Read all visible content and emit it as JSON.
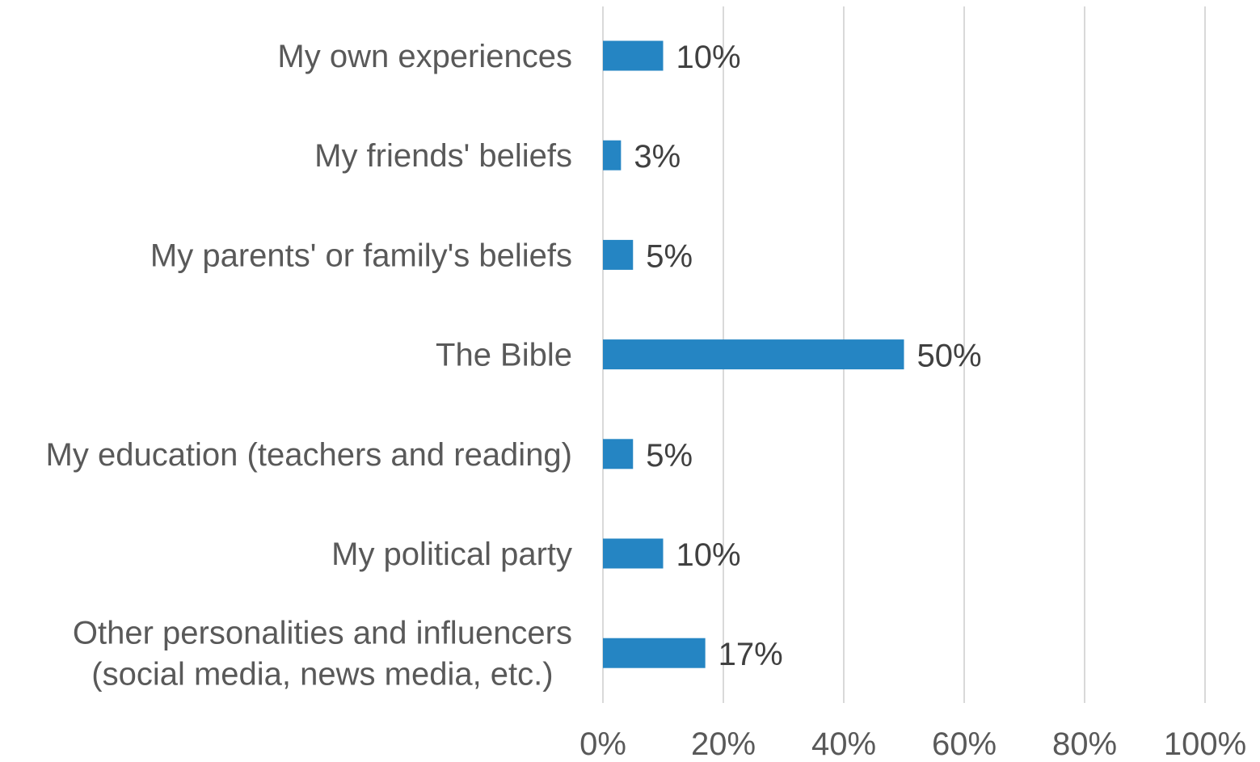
{
  "chart_data": {
    "type": "bar",
    "orientation": "horizontal",
    "categories": [
      "My own experiences",
      "My friends' beliefs",
      "My parents' or family's beliefs",
      "The Bible",
      "My education (teachers and reading)",
      "My political party",
      "Other personalities and influencers (social media, news media, etc.)"
    ],
    "category_lines": [
      [
        "My own experiences"
      ],
      [
        "My friends' beliefs"
      ],
      [
        "My parents' or family's beliefs"
      ],
      [
        "The Bible"
      ],
      [
        "My education (teachers and reading)"
      ],
      [
        "My political party"
      ],
      [
        "Other personalities and influencers",
        "(social media, news media, etc.)"
      ]
    ],
    "values": [
      10,
      3,
      5,
      50,
      5,
      10,
      17
    ],
    "data_labels": [
      "10%",
      "3%",
      "5%",
      "50%",
      "5%",
      "10%",
      "17%"
    ],
    "title": "",
    "xlabel": "",
    "ylabel": "",
    "xlim": [
      0,
      100
    ],
    "xticks": [
      0,
      20,
      40,
      60,
      80,
      100
    ],
    "xtick_labels": [
      "0%",
      "20%",
      "40%",
      "60%",
      "80%",
      "100%"
    ],
    "grid": "vertical",
    "legend": "none",
    "colors": {
      "bar": "#2585C3"
    }
  }
}
